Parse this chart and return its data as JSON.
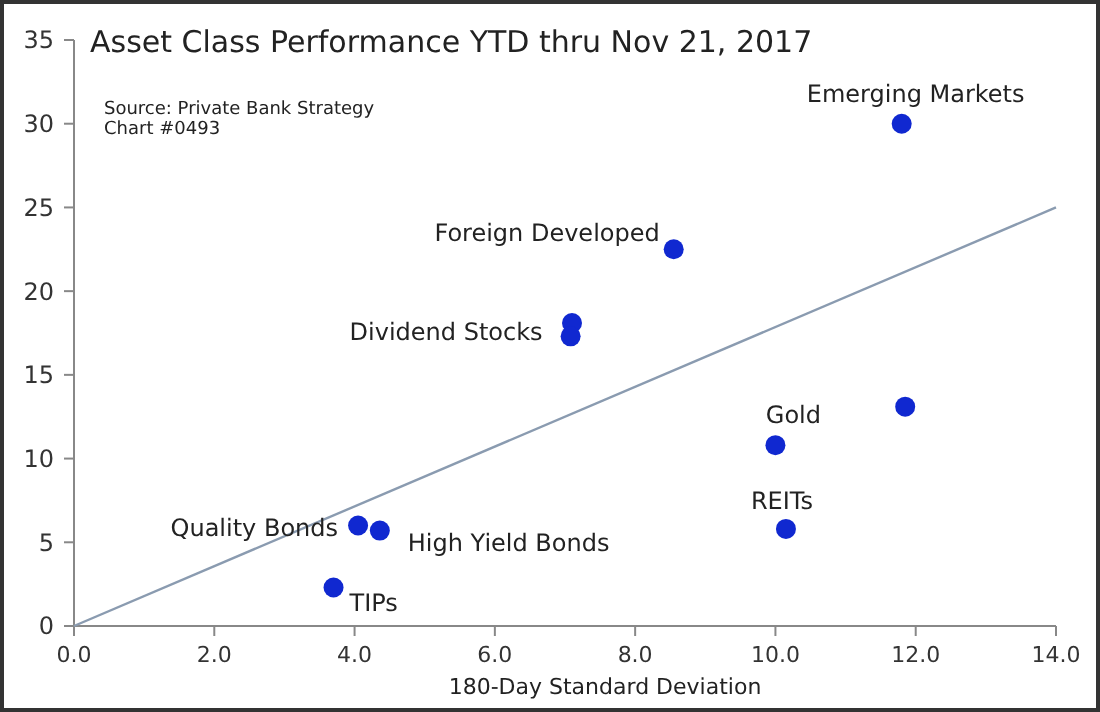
{
  "chart_data": {
    "type": "scatter",
    "title": "Asset Class Performance YTD thru Nov 21, 2017",
    "xlabel": "180-Day Standard Deviation",
    "xlim": [
      0,
      14
    ],
    "ylim": [
      0,
      35
    ],
    "xticks": [
      {
        "value": 0,
        "label": "0.0"
      },
      {
        "value": 2,
        "label": "2.0"
      },
      {
        "value": 4,
        "label": "4.0"
      },
      {
        "value": 6,
        "label": "6.0"
      },
      {
        "value": 8,
        "label": "8.0"
      },
      {
        "value": 10,
        "label": "10.0"
      },
      {
        "value": 12,
        "label": "12.0"
      },
      {
        "value": 14,
        "label": "14.0"
      }
    ],
    "yticks": [
      0,
      5,
      10,
      15,
      20,
      25,
      30,
      35
    ],
    "grid": false,
    "marker": "circle",
    "series": [
      {
        "color": "#1028d0",
        "x": [
          11.8,
          8.55,
          7.1,
          7.08,
          11.85,
          10.0,
          10.15,
          4.05,
          4.36,
          3.7
        ],
        "values": [
          30,
          22.5,
          18.1,
          17.3,
          13.1,
          10.8,
          5.8,
          6.0,
          5.7,
          2.3
        ]
      },
      {
        "type": "line",
        "color": "#8a9bb0",
        "line_style": "solid",
        "marker": "none",
        "x": [
          0,
          14
        ],
        "values": [
          0,
          25
        ]
      }
    ],
    "annotations": [
      "Source: Private Bank Strategy",
      "Chart #0493",
      {
        "text": "Emerging Markets",
        "x": 11.8,
        "y": 30
      },
      {
        "text": "Foreign Developed",
        "x": 8.55,
        "y": 22.5
      },
      {
        "text": "Dividend Stocks",
        "x": 7.08,
        "y": 17.3
      },
      {
        "text": "Gold",
        "x": 10.0,
        "y": 10.8
      },
      {
        "text": "REITs",
        "x": 10.15,
        "y": 5.8
      },
      {
        "text": "Quality Bonds",
        "x": 4.05,
        "y": 6.0
      },
      {
        "text": "High Yield Bonds",
        "x": 4.36,
        "y": 5.7
      },
      {
        "text": "TIPs",
        "x": 3.7,
        "y": 2.3
      }
    ]
  }
}
